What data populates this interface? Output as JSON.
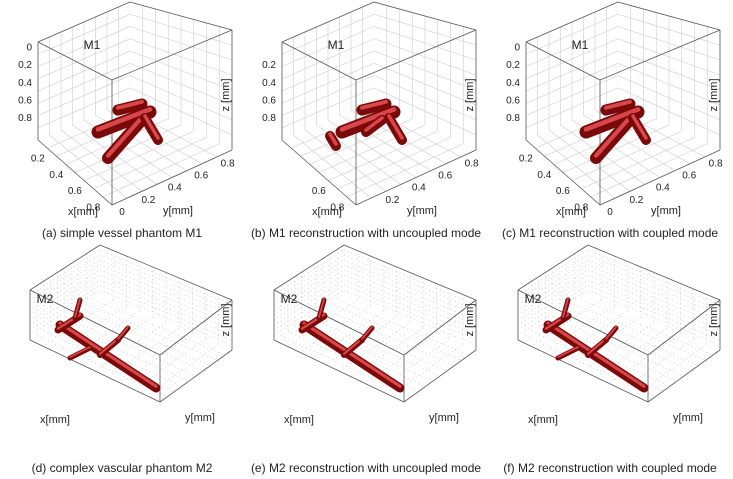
{
  "panels": [
    {
      "title": "M1",
      "caption": "(a) simple vessel phantom M1",
      "z_label": "z [mm]",
      "x_label": "x[mm]",
      "y_label": "y[mm]",
      "z_ticks": [
        0,
        0.2,
        0.4,
        0.6,
        0.8
      ],
      "x_ticks": [
        0.2,
        0.4,
        0.6,
        0.8
      ],
      "y_ticks": [
        0,
        0.2,
        0.4,
        0.6,
        0.8
      ]
    },
    {
      "title": "M1",
      "caption": "(b) M1 reconstruction with uncoupled mode",
      "z_label": "z [mm]",
      "x_label": "x[mm]",
      "y_label": "y[mm]",
      "z_ticks": [
        0.2,
        0.4,
        0.6,
        0.8
      ],
      "x_ticks": [
        0.6,
        0.8
      ],
      "y_ticks": [
        0.2,
        0.4,
        0.6,
        0.8
      ]
    },
    {
      "title": "M1",
      "caption": "(c) M1 reconstruction with coupled mode",
      "z_label": "z [mm]",
      "x_label": "x[mm]",
      "y_label": "y[mm]",
      "z_ticks": [
        0,
        0.2,
        0.4,
        0.6,
        0.8
      ],
      "x_ticks": [
        0.2,
        0.4,
        0.6,
        0.8
      ],
      "y_ticks": [
        0,
        0.2,
        0.4,
        0.6,
        0.8
      ]
    },
    {
      "title": "M2",
      "caption": "(d) complex vascular phantom M2",
      "z_label": "z [mm]",
      "x_label": "x[mm]",
      "y_label": "y[mm]"
    },
    {
      "title": "M2",
      "caption": "(e) M2 reconstruction with uncoupled mode",
      "z_label": "z [mm]",
      "x_label": "x[mm]",
      "y_label": "y[mm]"
    },
    {
      "title": "M2",
      "caption": "(f) M2 reconstruction with coupled mode",
      "z_label": "z [mm]",
      "x_label": "x[mm]",
      "y_label": "y[mm]"
    }
  ]
}
